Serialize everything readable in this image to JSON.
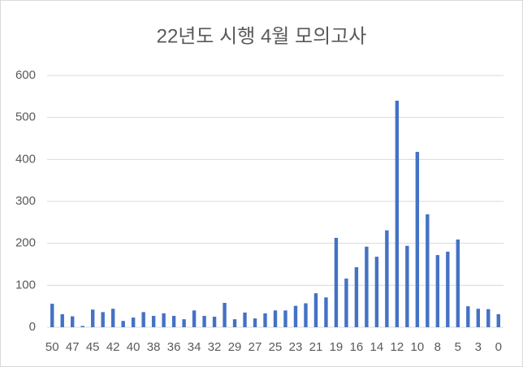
{
  "chart_data": {
    "type": "bar",
    "title": "22년도 시행 4월 모의고사",
    "categories": [
      "50",
      null,
      "47",
      null,
      "45",
      null,
      "42",
      null,
      "40",
      null,
      "38",
      null,
      "36",
      null,
      "34",
      null,
      "32",
      null,
      "29",
      null,
      "27",
      null,
      "25",
      null,
      "23",
      null,
      "21",
      null,
      "19",
      null,
      "16",
      null,
      "14",
      null,
      "12",
      null,
      "10",
      null,
      "8",
      null,
      "5",
      null,
      "3",
      null,
      "0"
    ],
    "values": [
      56,
      31,
      26,
      3,
      42,
      36,
      44,
      15,
      23,
      36,
      27,
      33,
      27,
      19,
      40,
      27,
      25,
      58,
      19,
      35,
      21,
      33,
      40,
      40,
      51,
      57,
      81,
      71,
      213,
      116,
      143,
      192,
      168,
      231,
      540,
      194,
      418,
      269,
      172,
      180,
      209,
      50,
      44,
      43,
      31
    ],
    "color": "#4472c4",
    "ylim": [
      0,
      600
    ],
    "yticks": [
      0,
      100,
      200,
      300,
      400,
      500,
      600
    ],
    "grid": true
  }
}
